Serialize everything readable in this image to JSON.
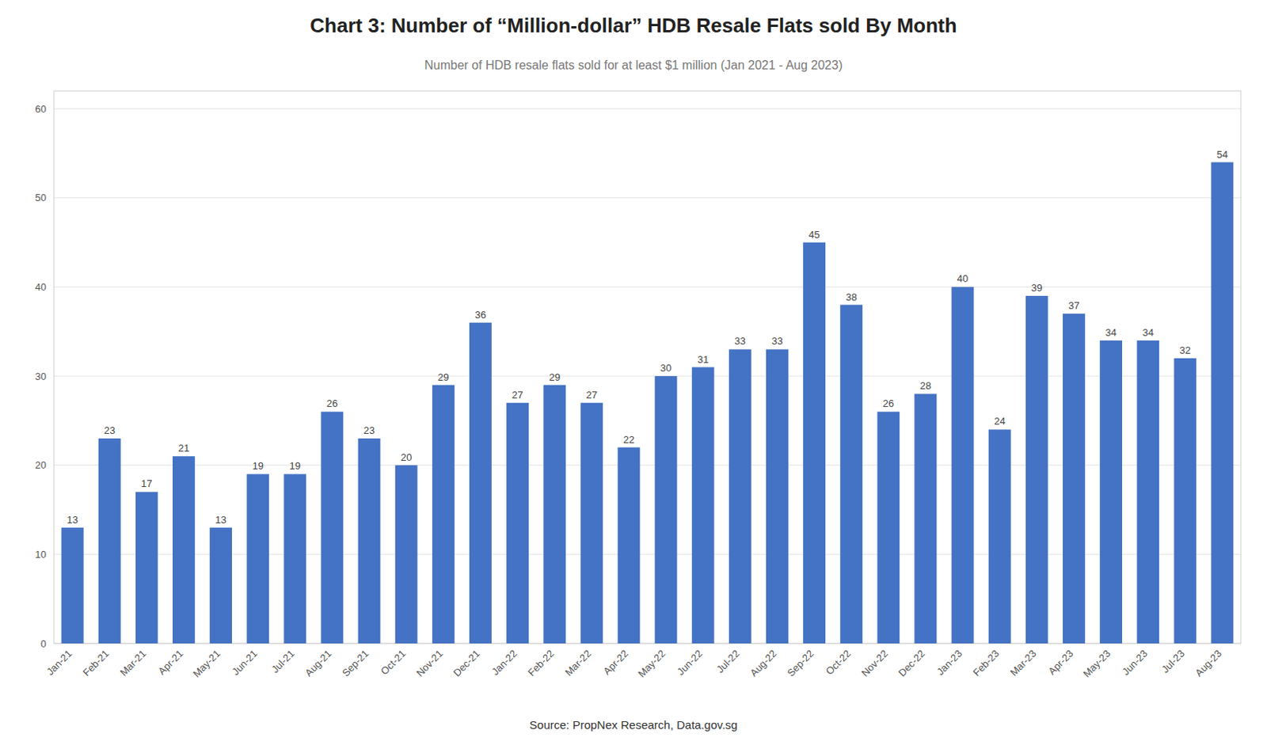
{
  "chart_data": {
    "type": "bar",
    "title": "Chart 3: Number of “Million-dollar” HDB Resale Flats sold By Month",
    "subtitle": "Number of HDB resale flats sold for at least $1 million (Jan 2021 - Aug 2023)",
    "annotations": [
      "Source: PropNex Research, Data.gov.sg"
    ],
    "categories": [
      "Jan-21",
      "Feb-21",
      "Mar-21",
      "Apr-21",
      "May-21",
      "Jun-21",
      "Jul-21",
      "Aug-21",
      "Sep-21",
      "Oct-21",
      "Nov-21",
      "Dec-21",
      "Jan-22",
      "Feb-22",
      "Mar-22",
      "Apr-22",
      "May-22",
      "Jun-22",
      "Jul-22",
      "Aug-22",
      "Sep-22",
      "Oct-22",
      "Nov-22",
      "Dec-22",
      "Jan-23",
      "Feb-23",
      "Mar-23",
      "Apr-23",
      "May-23",
      "Jun-23",
      "Jul-23",
      "Aug-23"
    ],
    "values": [
      13,
      23,
      17,
      21,
      13,
      19,
      19,
      26,
      23,
      20,
      29,
      36,
      27,
      29,
      27,
      22,
      30,
      31,
      33,
      33,
      45,
      38,
      26,
      28,
      40,
      24,
      39,
      37,
      34,
      34,
      32,
      54
    ],
    "color": "#4472C4",
    "ylim": [
      0,
      62
    ],
    "yticks": [
      0,
      10,
      20,
      30,
      40,
      50,
      60
    ],
    "grid": true,
    "data_labels": true
  }
}
